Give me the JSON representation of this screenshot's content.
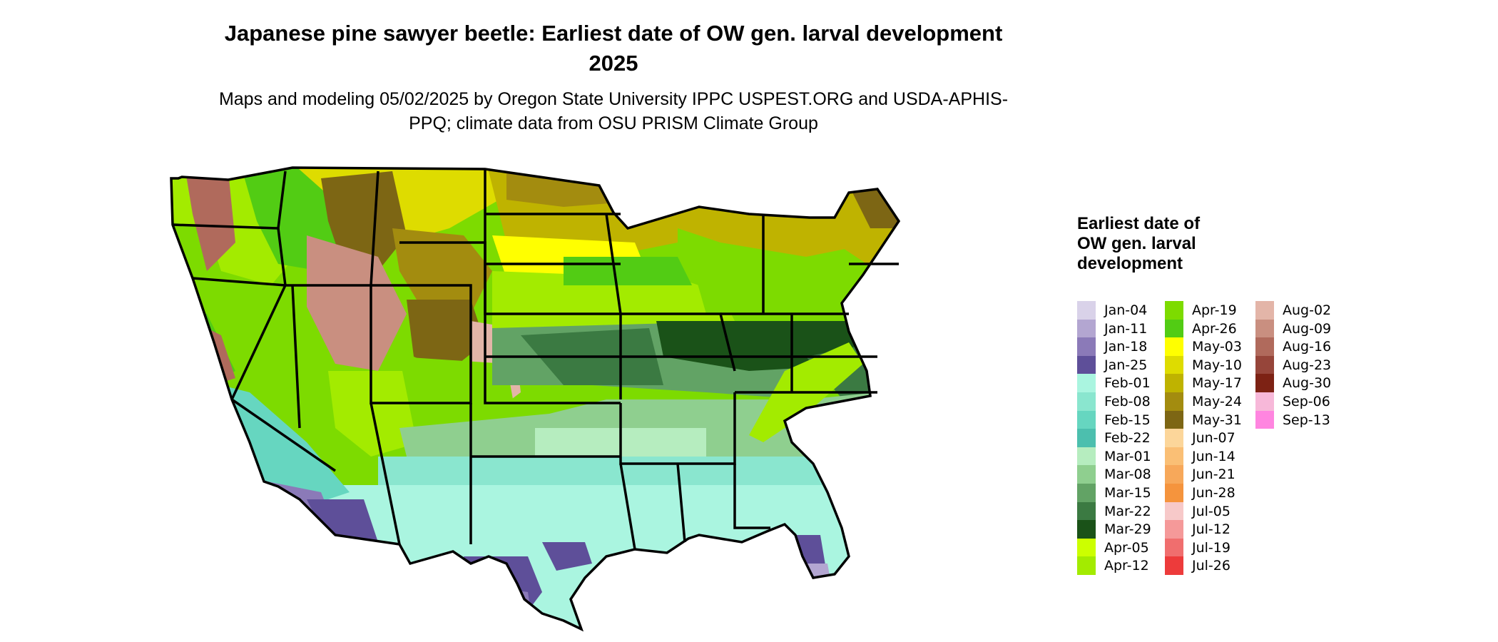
{
  "title": "Japanese pine sawyer beetle: Earliest date of OW gen. larval development 2025",
  "subtitle": "Maps and modeling 05/02/2025 by Oregon State University IPPC USPEST.ORG and USDA-APHIS-PPQ; climate data from OSU PRISM Climate Group",
  "legend": {
    "title": "Earliest date of OW gen. larval development",
    "columns": [
      [
        {
          "label": "Jan-04",
          "color": "#d9d2e9"
        },
        {
          "label": "Jan-11",
          "color": "#b3a6d1"
        },
        {
          "label": "Jan-18",
          "color": "#8b7ab8"
        },
        {
          "label": "Jan-25",
          "color": "#5e4f99"
        },
        {
          "label": "Feb-01",
          "color": "#aaf5e0"
        },
        {
          "label": "Feb-08",
          "color": "#8ae6cf"
        },
        {
          "label": "Feb-15",
          "color": "#66d6c0"
        },
        {
          "label": "Feb-22",
          "color": "#4cbfae"
        },
        {
          "label": "Mar-01",
          "color": "#b6edbf"
        },
        {
          "label": "Mar-08",
          "color": "#8fcf8f"
        },
        {
          "label": "Mar-15",
          "color": "#62a365"
        },
        {
          "label": "Mar-22",
          "color": "#3b7a42"
        },
        {
          "label": "Mar-29",
          "color": "#1a5218"
        },
        {
          "label": "Apr-05",
          "color": "#ccff00"
        },
        {
          "label": "Apr-12",
          "color": "#a3eb00"
        }
      ],
      [
        {
          "label": "Apr-19",
          "color": "#7ddb00"
        },
        {
          "label": "Apr-26",
          "color": "#52cc14"
        },
        {
          "label": "May-03",
          "color": "#ffff00"
        },
        {
          "label": "May-10",
          "color": "#dedc00"
        },
        {
          "label": "May-17",
          "color": "#bfb300"
        },
        {
          "label": "May-24",
          "color": "#a38c0f"
        },
        {
          "label": "May-31",
          "color": "#7d6614"
        },
        {
          "label": "Jun-07",
          "color": "#fcd69a"
        },
        {
          "label": "Jun-14",
          "color": "#fabf75"
        },
        {
          "label": "Jun-21",
          "color": "#f7a85a"
        },
        {
          "label": "Jun-28",
          "color": "#f5943d"
        },
        {
          "label": "Jul-05",
          "color": "#f7c9c9"
        },
        {
          "label": "Jul-12",
          "color": "#f59999"
        },
        {
          "label": "Jul-19",
          "color": "#f06e6e"
        },
        {
          "label": "Jul-26",
          "color": "#ed3b3b"
        }
      ],
      [
        {
          "label": "Aug-02",
          "color": "#e3b5a8"
        },
        {
          "label": "Aug-09",
          "color": "#c98f80"
        },
        {
          "label": "Aug-16",
          "color": "#b06a5c"
        },
        {
          "label": "Aug-23",
          "color": "#96453a"
        },
        {
          "label": "Aug-30",
          "color": "#7d2214"
        },
        {
          "label": "Sep-06",
          "color": "#f7b8d9"
        },
        {
          "label": "Sep-13",
          "color": "#ff85e0"
        }
      ]
    ]
  }
}
